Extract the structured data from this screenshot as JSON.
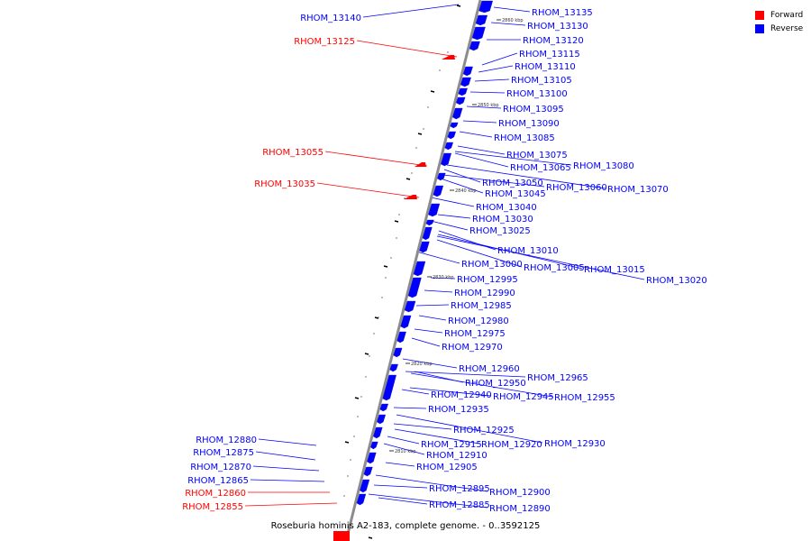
{
  "colors": {
    "forward": "#ff0000",
    "reverse": "#0000ff",
    "backbone": "#8c8c8c"
  },
  "legend": {
    "forward_label": "Forward",
    "reverse_label": "Reverse"
  },
  "caption": "Roseburia hominis A2-183, complete genome. - 0..3592125",
  "ticks": [
    "2860 kbp",
    "2850 kbp",
    "2840 kbp",
    "2830 kbp",
    "2820 kbp",
    "2810 kbp"
  ],
  "genes": [
    {
      "id": "RHOM_13140",
      "strand": "reverse"
    },
    {
      "id": "RHOM_13135",
      "strand": "reverse"
    },
    {
      "id": "RHOM_13130",
      "strand": "reverse"
    },
    {
      "id": "RHOM_13125",
      "strand": "forward"
    },
    {
      "id": "RHOM_13120",
      "strand": "reverse"
    },
    {
      "id": "RHOM_13115",
      "strand": "reverse"
    },
    {
      "id": "RHOM_13110",
      "strand": "reverse"
    },
    {
      "id": "RHOM_13105",
      "strand": "reverse"
    },
    {
      "id": "RHOM_13100",
      "strand": "reverse"
    },
    {
      "id": "RHOM_13095",
      "strand": "reverse"
    },
    {
      "id": "RHOM_13090",
      "strand": "reverse"
    },
    {
      "id": "RHOM_13085",
      "strand": "reverse"
    },
    {
      "id": "RHOM_13080",
      "strand": "reverse"
    },
    {
      "id": "RHOM_13075",
      "strand": "reverse"
    },
    {
      "id": "RHOM_13070",
      "strand": "reverse"
    },
    {
      "id": "RHOM_13065",
      "strand": "reverse"
    },
    {
      "id": "RHOM_13060",
      "strand": "reverse"
    },
    {
      "id": "RHOM_13055",
      "strand": "forward"
    },
    {
      "id": "RHOM_13050",
      "strand": "reverse"
    },
    {
      "id": "RHOM_13045",
      "strand": "reverse"
    },
    {
      "id": "RHOM_13040",
      "strand": "reverse"
    },
    {
      "id": "RHOM_13035",
      "strand": "forward"
    },
    {
      "id": "RHOM_13030",
      "strand": "reverse"
    },
    {
      "id": "RHOM_13025",
      "strand": "reverse"
    },
    {
      "id": "RHOM_13020",
      "strand": "reverse"
    },
    {
      "id": "RHOM_13015",
      "strand": "reverse"
    },
    {
      "id": "RHOM_13010",
      "strand": "reverse"
    },
    {
      "id": "RHOM_13005",
      "strand": "reverse"
    },
    {
      "id": "RHOM_13000",
      "strand": "reverse"
    },
    {
      "id": "RHOM_12995",
      "strand": "reverse"
    },
    {
      "id": "RHOM_12990",
      "strand": "reverse"
    },
    {
      "id": "RHOM_12985",
      "strand": "reverse"
    },
    {
      "id": "RHOM_12980",
      "strand": "reverse"
    },
    {
      "id": "RHOM_12975",
      "strand": "reverse"
    },
    {
      "id": "RHOM_12970",
      "strand": "reverse"
    },
    {
      "id": "RHOM_12965",
      "strand": "reverse"
    },
    {
      "id": "RHOM_12960",
      "strand": "reverse"
    },
    {
      "id": "RHOM_12955",
      "strand": "reverse"
    },
    {
      "id": "RHOM_12950",
      "strand": "reverse"
    },
    {
      "id": "RHOM_12945",
      "strand": "reverse"
    },
    {
      "id": "RHOM_12940",
      "strand": "reverse"
    },
    {
      "id": "RHOM_12935",
      "strand": "reverse"
    },
    {
      "id": "RHOM_12930",
      "strand": "reverse"
    },
    {
      "id": "RHOM_12925",
      "strand": "reverse"
    },
    {
      "id": "RHOM_12920",
      "strand": "reverse"
    },
    {
      "id": "RHOM_12915",
      "strand": "reverse"
    },
    {
      "id": "RHOM_12910",
      "strand": "reverse"
    },
    {
      "id": "RHOM_12905",
      "strand": "reverse"
    },
    {
      "id": "RHOM_12900",
      "strand": "reverse"
    },
    {
      "id": "RHOM_12895",
      "strand": "reverse"
    },
    {
      "id": "RHOM_12890",
      "strand": "reverse"
    },
    {
      "id": "RHOM_12885",
      "strand": "reverse"
    },
    {
      "id": "RHOM_12880",
      "strand": "reverse"
    },
    {
      "id": "RHOM_12875",
      "strand": "reverse"
    },
    {
      "id": "RHOM_12870",
      "strand": "reverse"
    },
    {
      "id": "RHOM_12865",
      "strand": "reverse"
    },
    {
      "id": "RHOM_12860",
      "strand": "forward"
    },
    {
      "id": "RHOM_12855",
      "strand": "forward"
    }
  ]
}
